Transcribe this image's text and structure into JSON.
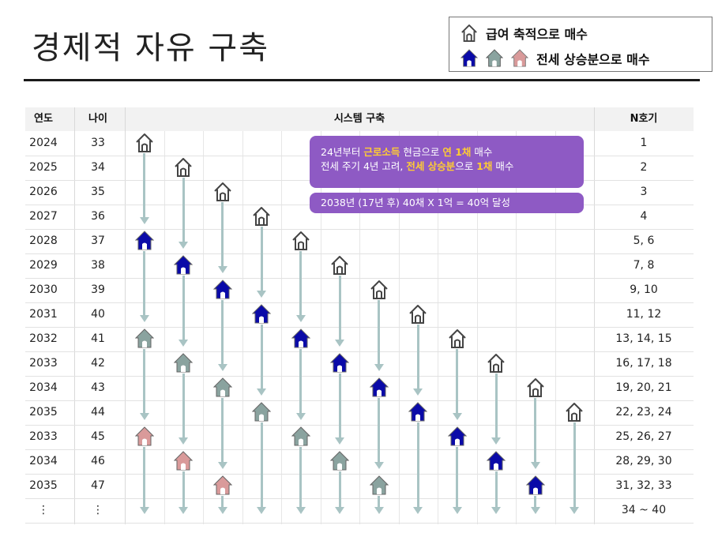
{
  "title": "경제적 자유 구축",
  "legend": {
    "row1_label": "급여 축적으로 매수",
    "row2_label": "전세 상승분으로 매수"
  },
  "icons": {
    "outline_house": "house-outline-icon",
    "blue_house": "house-blue-icon",
    "gray_house": "house-gray-icon",
    "pink_house": "house-pink-icon"
  },
  "colors": {
    "blue": "#0a0aa8",
    "gray": "#8aa39f",
    "pink": "#d99a9a",
    "note_bg": "#8e5ac4",
    "highlight": "#ffcc33",
    "arrow": "#a9c4c4"
  },
  "table": {
    "headers": {
      "year": "연도",
      "age": "나이",
      "system": "시스템 구축",
      "count": "N호기"
    },
    "rows": [
      {
        "year": "2024",
        "age": "33",
        "count": "1"
      },
      {
        "year": "2025",
        "age": "34",
        "count": "2"
      },
      {
        "year": "2026",
        "age": "35",
        "count": "3"
      },
      {
        "year": "2027",
        "age": "36",
        "count": "4"
      },
      {
        "year": "2028",
        "age": "37",
        "count": "5, 6"
      },
      {
        "year": "2029",
        "age": "38",
        "count": "7, 8"
      },
      {
        "year": "2030",
        "age": "39",
        "count": "9, 10"
      },
      {
        "year": "2031",
        "age": "40",
        "count": "11, 12"
      },
      {
        "year": "2032",
        "age": "41",
        "count": "13, 14, 15"
      },
      {
        "year": "2033",
        "age": "42",
        "count": "16, 17, 18"
      },
      {
        "year": "2034",
        "age": "43",
        "count": "19, 20, 21"
      },
      {
        "year": "2035",
        "age": "44",
        "count": "22, 23, 24"
      },
      {
        "year": "2033",
        "age": "45",
        "count": "25, 26, 27"
      },
      {
        "year": "2034",
        "age": "46",
        "count": "28, 29, 30"
      },
      {
        "year": "2035",
        "age": "47",
        "count": "31, 32, 33"
      },
      {
        "year": "⋮",
        "age": "⋮",
        "count": "34 ~ 40"
      }
    ]
  },
  "notes": {
    "note1_line1_a": "24년부터 ",
    "note1_line1_b": "근로소득",
    "note1_line1_c": " 현금으로 ",
    "note1_line1_d": "연 1채",
    "note1_line1_e": " 매수",
    "note1_line2_a": "전세 주기 4년 고려, ",
    "note1_line2_b": "전세 상승분",
    "note1_line2_c": "으로 ",
    "note1_line2_d": "1채",
    "note1_line2_e": " 매수",
    "note2": "2038년 (17년  후) 40채 X 1억 = 40억 달성"
  },
  "system_columns": [
    {
      "start_row": 0,
      "houses": [
        [
          0,
          "outline"
        ],
        [
          4,
          "blue"
        ],
        [
          8,
          "gray"
        ],
        [
          12,
          "pink"
        ]
      ]
    },
    {
      "start_row": 1,
      "houses": [
        [
          1,
          "outline"
        ],
        [
          5,
          "blue"
        ],
        [
          9,
          "gray"
        ],
        [
          13,
          "pink"
        ]
      ]
    },
    {
      "start_row": 2,
      "houses": [
        [
          2,
          "outline"
        ],
        [
          6,
          "blue"
        ],
        [
          10,
          "gray"
        ],
        [
          14,
          "pink"
        ]
      ]
    },
    {
      "start_row": 3,
      "houses": [
        [
          3,
          "outline"
        ],
        [
          7,
          "blue"
        ],
        [
          11,
          "gray"
        ]
      ]
    },
    {
      "start_row": 4,
      "houses": [
        [
          4,
          "outline"
        ],
        [
          8,
          "blue"
        ],
        [
          12,
          "gray"
        ]
      ]
    },
    {
      "start_row": 5,
      "houses": [
        [
          5,
          "outline"
        ],
        [
          9,
          "blue"
        ],
        [
          13,
          "gray"
        ]
      ]
    },
    {
      "start_row": 6,
      "houses": [
        [
          6,
          "outline"
        ],
        [
          10,
          "blue"
        ],
        [
          14,
          "gray"
        ]
      ]
    },
    {
      "start_row": 7,
      "houses": [
        [
          7,
          "outline"
        ],
        [
          11,
          "blue"
        ]
      ]
    },
    {
      "start_row": 8,
      "houses": [
        [
          8,
          "outline"
        ],
        [
          12,
          "blue"
        ]
      ]
    },
    {
      "start_row": 9,
      "houses": [
        [
          9,
          "outline"
        ],
        [
          13,
          "blue"
        ]
      ]
    },
    {
      "start_row": 10,
      "houses": [
        [
          10,
          "outline"
        ],
        [
          14,
          "blue"
        ]
      ]
    },
    {
      "start_row": 11,
      "houses": [
        [
          11,
          "outline"
        ]
      ]
    }
  ]
}
